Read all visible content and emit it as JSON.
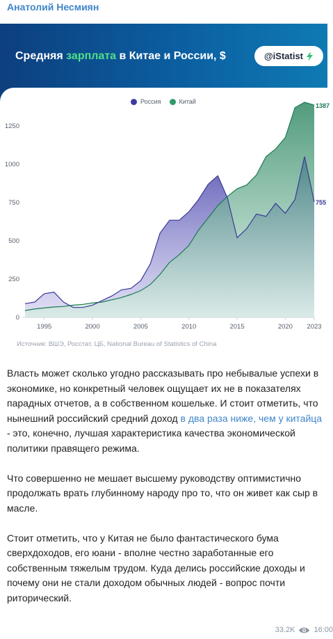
{
  "post": {
    "author": "Анатолий Несмиян",
    "views": "33.2K",
    "time": "16:00"
  },
  "banner": {
    "title_before": "Средняя ",
    "title_highlight": "зарплата",
    "title_after": " в Китае и России, $",
    "brand": "@iStatist",
    "highlight_color": "#4fe08a"
  },
  "chart_data": {
    "type": "area",
    "series": [
      {
        "name": "Россия",
        "color": "#3d3ba0",
        "x": [
          1993,
          1994,
          1995,
          1996,
          1997,
          1998,
          1999,
          2000,
          2001,
          2002,
          2003,
          2004,
          2005,
          2006,
          2007,
          2008,
          2009,
          2010,
          2011,
          2012,
          2013,
          2014,
          2015,
          2016,
          2017,
          2018,
          2019,
          2020,
          2021,
          2022,
          2023
        ],
        "values": [
          90,
          100,
          155,
          165,
          100,
          65,
          65,
          80,
          110,
          140,
          180,
          190,
          240,
          350,
          550,
          635,
          635,
          690,
          770,
          870,
          925,
          780,
          520,
          580,
          675,
          660,
          745,
          680,
          770,
          1050,
          755
        ]
      },
      {
        "name": "Китай",
        "color": "#2f9a6b",
        "x": [
          1993,
          1994,
          1995,
          1996,
          1997,
          1998,
          1999,
          2000,
          2001,
          2002,
          2003,
          2004,
          2005,
          2006,
          2007,
          2008,
          2009,
          2010,
          2011,
          2012,
          2013,
          2014,
          2015,
          2016,
          2017,
          2018,
          2019,
          2020,
          2021,
          2022,
          2023
        ],
        "values": [
          45,
          55,
          62,
          68,
          72,
          80,
          85,
          95,
          100,
          115,
          130,
          150,
          175,
          215,
          280,
          360,
          410,
          470,
          570,
          650,
          730,
          790,
          840,
          865,
          930,
          1050,
          1100,
          1175,
          1370,
          1405,
          1387
        ]
      }
    ],
    "end_labels": [
      "1387",
      "755"
    ],
    "x_ticks": [
      "1995",
      "2000",
      "2005",
      "2010",
      "2015",
      "2020",
      "2023"
    ],
    "y_ticks": [
      "0",
      "250",
      "500",
      "750",
      "1000",
      "1250"
    ],
    "ylim": [
      0,
      1400
    ],
    "xlim": [
      1993,
      2023
    ],
    "legend_position": "top-center",
    "grid": false,
    "source": "Источник: ВШЭ, Росстат, ЦБ, National Bureau of Statistics  of China"
  },
  "article": {
    "p1_before": "Власть может сколько угодно рассказывать про небывалые успехи в экономике, но конкретный человек ощущает их не в показателях парадных отчетов, а в собственном кошельке. И стоит отметить, что нынешний российский средний доход ",
    "p1_link": "в два раза ниже, чем у китайца",
    "p1_after": " - это, конечно, лучшая характеристика качества экономической политики правящего режима.",
    "p2": "Что совершенно не мешает высшему руководству оптимистично продолжать врать глубинному народу про то, что он живет как сыр в масле.",
    "p3": "Стоит отметить, что у Китая не было фантастического бума сверхдоходов, его юани - вполне честно заработанные его собственным тяжелым трудом. Куда делись российские доходы и почему они не стали доходом обычных людей - вопрос почти риторический."
  }
}
